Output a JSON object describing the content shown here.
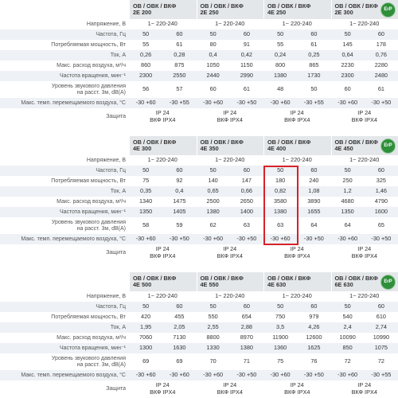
{
  "tables": [
    {
      "badge": "ErP",
      "models": [
        [
          "ОВ / ОВК / ВКФ",
          "2Е 200"
        ],
        [
          "ОВ / ОВК / ВКФ",
          "2Е 250"
        ],
        [
          "ОВ / ОВК / ВКФ",
          "4Е 250"
        ],
        [
          "ОВ / ОВК / ВКФ",
          "2Е 300"
        ]
      ],
      "rows": [
        {
          "label": [
            "Напряжение, В"
          ],
          "cells": [
            "1~ 220-240",
            "1~ 220-240",
            "1~ 220-240",
            "1~ 220-240"
          ]
        },
        {
          "label": [
            "Частота, Гц"
          ],
          "cells": [
            "50",
            "60",
            "50",
            "60",
            "50",
            "60",
            "50",
            "60"
          ]
        },
        {
          "label": [
            "Потребляемая мощность, Вт"
          ],
          "cells": [
            "55",
            "61",
            "80",
            "91",
            "55",
            "61",
            "145",
            "178"
          ]
        },
        {
          "label": [
            "Ток, А"
          ],
          "cells": [
            "0,26",
            "0,28",
            "0,4",
            "0,42",
            "0,24",
            "0,25",
            "0,64",
            "0,76"
          ]
        },
        {
          "label": [
            "Макс. расход воздуха, м³/ч"
          ],
          "cells": [
            "860",
            "875",
            "1050",
            "1150",
            "800",
            "865",
            "2230",
            "2280"
          ]
        },
        {
          "label": [
            "Частота вращения, мин⁻¹"
          ],
          "cells": [
            "2300",
            "2550",
            "2440",
            "2990",
            "1380",
            "1730",
            "2300",
            "2480"
          ]
        },
        {
          "label": [
            "Уровень звукового давления",
            "на расст. 3м, dB(A)"
          ],
          "cells": [
            "56",
            "57",
            "60",
            "61",
            "48",
            "50",
            "60",
            "61"
          ]
        },
        {
          "label": [
            "Макс. темп. перемещаемого воздуха, °С"
          ],
          "cells": [
            "-30 +60",
            "-30 +55",
            "-30 +60",
            "-30 +50",
            "-30 +60",
            "-30 +55",
            "-30 +60",
            "-30 +50"
          ]
        },
        {
          "label": [
            "Защита"
          ],
          "cells": [
            [
              "IP 24",
              "ВКФ IPX4"
            ],
            [
              "IP 24",
              "ВКФ IPX4"
            ],
            [
              "IP 24",
              "ВКФ IPX4"
            ],
            [
              "IP 24",
              "ВКФ IPX4"
            ]
          ]
        }
      ]
    },
    {
      "badge": "ErP",
      "models": [
        [
          "ОВ / ОВК / ВКФ",
          "4Е 300"
        ],
        [
          "ОВ / ОВК / ВКФ",
          "4Е 350"
        ],
        [
          "ОВ / ОВК / ВКФ",
          "4Е 400"
        ],
        [
          "ОВ / ОВК / ВКФ",
          "4Е 450"
        ]
      ],
      "rows": [
        {
          "label": [
            "Напряжение, В"
          ],
          "cells": [
            "1~ 220-240",
            "1~ 220-240",
            "1~ 220-240",
            "1~ 220-240"
          ]
        },
        {
          "label": [
            "Частота, Гц"
          ],
          "cells": [
            "50",
            "60",
            "50",
            "60",
            "50",
            "60",
            "50",
            "60"
          ]
        },
        {
          "label": [
            "Потребляемая мощность, Вт"
          ],
          "cells": [
            "75",
            "92",
            "140",
            "147",
            "180",
            "240",
            "250",
            "325"
          ]
        },
        {
          "label": [
            "Ток, А"
          ],
          "cells": [
            "0,35",
            "0,4",
            "0,65",
            "0,66",
            "0,82",
            "1,08",
            "1,2",
            "1,46"
          ]
        },
        {
          "label": [
            "Макс. расход воздуха, м³/ч"
          ],
          "cells": [
            "1340",
            "1475",
            "2500",
            "2650",
            "3580",
            "3890",
            "4680",
            "4790"
          ]
        },
        {
          "label": [
            "Частота вращения, мин⁻¹"
          ],
          "cells": [
            "1350",
            "1405",
            "1380",
            "1400",
            "1380",
            "1655",
            "1350",
            "1600"
          ]
        },
        {
          "label": [
            "Уровень звукового давления",
            "на расст. 3м, dB(A)"
          ],
          "cells": [
            "58",
            "59",
            "62",
            "63",
            "63",
            "64",
            "64",
            "65"
          ]
        },
        {
          "label": [
            "Макс. темп. перемещаемого воздуха, °С"
          ],
          "cells": [
            "-30 +60",
            "-30 +50",
            "-30 +60",
            "-30 +50",
            "-30 +60",
            "-30 +50",
            "-30 +60",
            "-30 +50"
          ]
        },
        {
          "label": [
            "Защита"
          ],
          "cells": [
            [
              "IP 24",
              "ВКФ IPX4"
            ],
            [
              "IP 24",
              "ВКФ IPX4"
            ],
            [
              "IP 24",
              "ВКФ IPX4"
            ],
            [
              "IP 24",
              "ВКФ IPX4"
            ]
          ]
        }
      ]
    },
    {
      "badge": "ErP",
      "models": [
        [
          "ОВ / ОВК / ВКФ",
          "4Е 500"
        ],
        [
          "ОВ / ОВК / ВКФ",
          "4Е 550"
        ],
        [
          "ОВ / ОВК / ВКФ",
          "4Е 630"
        ],
        [
          "ОВ / ОВК / ВКФ",
          "6Е 630"
        ]
      ],
      "rows": [
        {
          "label": [
            "Напряжение, В"
          ],
          "cells": [
            "1~ 220-240",
            "1~ 220-240",
            "1~ 220-240",
            "1~ 220-240"
          ]
        },
        {
          "label": [
            "Частота, Гц"
          ],
          "cells": [
            "50",
            "60",
            "50",
            "60",
            "50",
            "60",
            "50",
            "60"
          ]
        },
        {
          "label": [
            "Потребляемая мощность, Вт"
          ],
          "cells": [
            "420",
            "455",
            "550",
            "654",
            "750",
            "979",
            "540",
            "610"
          ]
        },
        {
          "label": [
            "Ток, А"
          ],
          "cells": [
            "1,95",
            "2,05",
            "2,55",
            "2,88",
            "3,5",
            "4,26",
            "2,4",
            "2,74"
          ]
        },
        {
          "label": [
            "Макс. расход воздуха, м³/ч"
          ],
          "cells": [
            "7060",
            "7130",
            "8800",
            "8970",
            "11900",
            "12600",
            "10090",
            "10990"
          ]
        },
        {
          "label": [
            "Частота вращения, мин⁻¹"
          ],
          "cells": [
            "1300",
            "1630",
            "1330",
            "1380",
            "1360",
            "1625",
            "850",
            "1075"
          ]
        },
        {
          "label": [
            "Уровень звукового давления",
            "на расст. 3м, dB(A)"
          ],
          "cells": [
            "69",
            "69",
            "70",
            "71",
            "75",
            "76",
            "72",
            "72"
          ]
        },
        {
          "label": [
            "Макс. темп. перемещаемого воздуха, °С"
          ],
          "cells": [
            "-30 +60",
            "-30 +60",
            "-30 +60",
            "-30 +50",
            "-30 +60",
            "-30 +50",
            "-30 +60",
            "-30 +55"
          ]
        },
        {
          "label": [
            "Защита"
          ],
          "cells": [
            [
              "IP 24",
              "ВКФ IPX4"
            ],
            [
              "IP 24",
              "ВКФ IPX4"
            ],
            [
              "IP 24",
              "ВКФ IPX4"
            ],
            [
              "IP 24",
              "ВКФ IPX4"
            ]
          ]
        }
      ]
    }
  ]
}
